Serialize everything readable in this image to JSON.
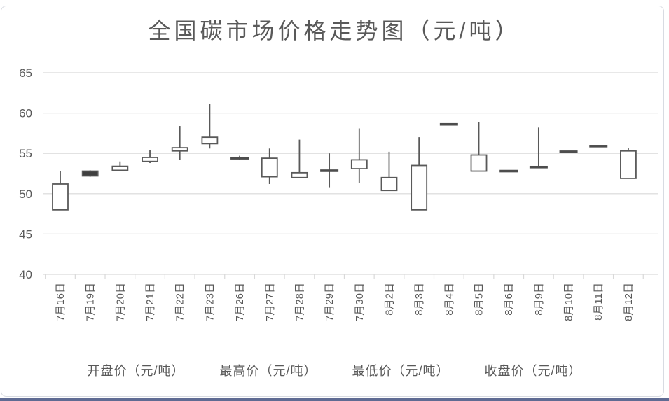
{
  "chart_data": {
    "type": "candlestick",
    "title": "全国碳市场价格走势图（元/吨）",
    "categories": [
      "7月16日",
      "7月19日",
      "7月20日",
      "7月21日",
      "7月22日",
      "7月23日",
      "7月26日",
      "7月27日",
      "7月28日",
      "7月29日",
      "7月30日",
      "8月2日",
      "8月3日",
      "8月4日",
      "8月5日",
      "8月6日",
      "8月9日",
      "8月10日",
      "8月11日",
      "8月12日"
    ],
    "series": [
      {
        "name": "开盘价（元/吨）",
        "values": [
          48.0,
          52.8,
          52.9,
          54.0,
          55.3,
          56.2,
          54.4,
          52.1,
          52.0,
          52.9,
          53.1,
          50.4,
          48.0,
          58.6,
          52.8,
          52.8,
          53.3,
          55.2,
          55.9,
          51.9
        ]
      },
      {
        "name": "最高价（元/吨）",
        "values": [
          52.8,
          52.9,
          54.0,
          55.4,
          58.4,
          61.1,
          54.7,
          55.6,
          56.7,
          55.0,
          58.1,
          55.2,
          57.0,
          58.6,
          58.9,
          52.8,
          58.2,
          55.2,
          55.9,
          55.7
        ]
      },
      {
        "name": "最低价（元/吨）",
        "values": [
          48.0,
          52.1,
          52.9,
          53.8,
          54.2,
          55.6,
          54.2,
          51.2,
          52.0,
          50.8,
          51.3,
          50.4,
          48.0,
          58.6,
          52.8,
          52.8,
          53.3,
          55.2,
          55.9,
          51.9
        ]
      },
      {
        "name": "收盘价（元/吨）",
        "values": [
          51.2,
          52.2,
          53.4,
          54.5,
          55.7,
          57.0,
          54.4,
          54.4,
          52.6,
          52.8,
          54.2,
          52.0,
          53.5,
          58.6,
          54.8,
          52.8,
          53.3,
          55.2,
          55.9,
          55.3
        ]
      }
    ],
    "ylim": [
      40,
      65
    ],
    "yticks": [
      65,
      60,
      55,
      50,
      45,
      40
    ],
    "grid": "horizontal",
    "legend_position": "bottom",
    "colors": {
      "up_body": "#ffffff",
      "down_body": "#3f3f3f",
      "flat_dash": "#4d4d4d",
      "outline": "#595959",
      "wick": "#595959",
      "gridline": "#d9d9d9",
      "text": "#595959",
      "bottom_bar": "#5f6b93"
    }
  }
}
